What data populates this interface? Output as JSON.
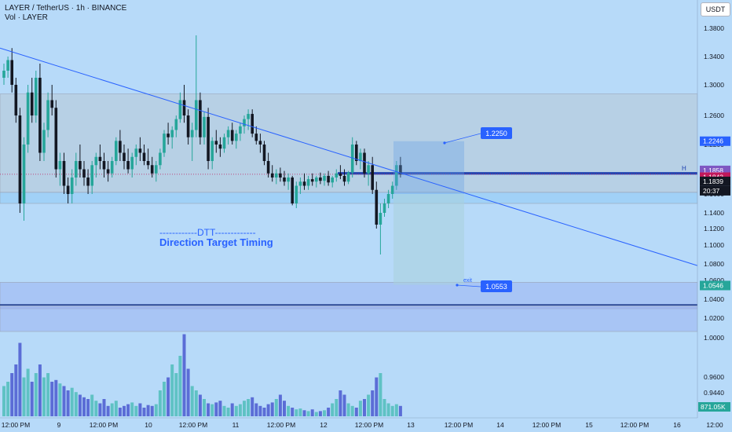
{
  "header": {
    "symbol": "LAYER / TetherUS · 1h · BINANCE",
    "volume": "Vol · LAYER"
  },
  "currency": "USDT",
  "colors": {
    "bg": "#b7daf9",
    "up": "#26a69a",
    "down": "#131722",
    "trend": "#2962ff",
    "vol_up": "#5fc2c4",
    "vol_down": "#5b6dd6"
  },
  "chart_data": {
    "type": "candlestick",
    "y_ticks": [
      "1.3800",
      "1.3400",
      "1.3000",
      "1.2600",
      "1.2200",
      "1.1600",
      "1.1400",
      "1.1200",
      "1.1000",
      "1.0800",
      "1.0600",
      "1.0400",
      "1.0200",
      "1.0000",
      "0.9600",
      "0.9440"
    ],
    "y_tick_values": [
      1.38,
      1.34,
      1.3,
      1.26,
      1.22,
      1.16,
      1.14,
      1.12,
      1.1,
      1.08,
      1.06,
      1.04,
      1.02,
      1.0,
      0.96,
      0.944
    ],
    "x_ticks": [
      "12:00 PM",
      "9",
      "12:00 PM",
      "10",
      "12:00 PM",
      "11",
      "12:00 PM",
      "12",
      "12:00 PM",
      "13",
      "12:00 PM",
      "14",
      "12:00 PM",
      "15",
      "12:00 PM",
      "16",
      "12:00"
    ],
    "price_labels": [
      {
        "text": "1.2246",
        "value": 1.2246,
        "color": "#2962ff"
      },
      {
        "text": "1.1858",
        "value": 1.1858,
        "color": "#7e57c2"
      },
      {
        "text": "1.1843",
        "value": 1.1843,
        "color": "#c2185b"
      },
      {
        "text": "1.1839",
        "value": 1.1839,
        "color": "#131722"
      },
      {
        "text": "1.0546",
        "value": 1.0546,
        "color": "#26a69a"
      }
    ],
    "countdown": "20:37",
    "volume_label": "871.05K",
    "annotations": {
      "target": "1.2250",
      "exit_price": "1.0553",
      "exit_label": "exit",
      "line_marker": "H",
      "dtt_title": "------------DTT-------------",
      "dtt_subtitle": "Direction Target Timing"
    },
    "zones": [
      {
        "from": 1.162,
        "to": 1.288
      },
      {
        "from": 1.15,
        "to": 1.162
      },
      {
        "from": 1.03,
        "to": 1.058
      }
    ],
    "horizontal_levels": [
      1.1843,
      1.1858,
      1.034
    ],
    "trendline": {
      "from": 1.352,
      "to": 1.078
    },
    "candles": [
      [
        1.31,
        1.33,
        1.3,
        1.32
      ],
      [
        1.32,
        1.34,
        1.31,
        1.335
      ],
      [
        1.335,
        1.352,
        1.29,
        1.3
      ],
      [
        1.3,
        1.31,
        1.25,
        1.26
      ],
      [
        1.26,
        1.27,
        1.14,
        1.15
      ],
      [
        1.15,
        1.23,
        1.13,
        1.22
      ],
      [
        1.22,
        1.3,
        1.21,
        1.29
      ],
      [
        1.29,
        1.31,
        1.25,
        1.26
      ],
      [
        1.26,
        1.32,
        1.25,
        1.31
      ],
      [
        1.31,
        1.33,
        1.2,
        1.21
      ],
      [
        1.21,
        1.25,
        1.2,
        1.24
      ],
      [
        1.24,
        1.29,
        1.23,
        1.28
      ],
      [
        1.28,
        1.3,
        1.26,
        1.27
      ],
      [
        1.27,
        1.28,
        1.18,
        1.19
      ],
      [
        1.19,
        1.21,
        1.17,
        1.2
      ],
      [
        1.2,
        1.21,
        1.16,
        1.17
      ],
      [
        1.17,
        1.18,
        1.15,
        1.16
      ],
      [
        1.16,
        1.19,
        1.15,
        1.18
      ],
      [
        1.18,
        1.21,
        1.17,
        1.2
      ],
      [
        1.2,
        1.22,
        1.18,
        1.19
      ],
      [
        1.19,
        1.2,
        1.17,
        1.18
      ],
      [
        1.18,
        1.19,
        1.16,
        1.17
      ],
      [
        1.17,
        1.2,
        1.16,
        1.195
      ],
      [
        1.195,
        1.21,
        1.18,
        1.205
      ],
      [
        1.205,
        1.22,
        1.19,
        1.2
      ],
      [
        1.2,
        1.21,
        1.18,
        1.19
      ],
      [
        1.19,
        1.2,
        1.175,
        1.185
      ],
      [
        1.185,
        1.205,
        1.18,
        1.2
      ],
      [
        1.2,
        1.23,
        1.195,
        1.225
      ],
      [
        1.225,
        1.24,
        1.2,
        1.21
      ],
      [
        1.21,
        1.22,
        1.19,
        1.2
      ],
      [
        1.2,
        1.215,
        1.185,
        1.19
      ],
      [
        1.19,
        1.21,
        1.18,
        1.205
      ],
      [
        1.205,
        1.22,
        1.195,
        1.215
      ],
      [
        1.215,
        1.23,
        1.2,
        1.21
      ],
      [
        1.21,
        1.22,
        1.195,
        1.2
      ],
      [
        1.2,
        1.215,
        1.19,
        1.195
      ],
      [
        1.195,
        1.205,
        1.18,
        1.185
      ],
      [
        1.185,
        1.2,
        1.175,
        1.195
      ],
      [
        1.195,
        1.215,
        1.19,
        1.21
      ],
      [
        1.21,
        1.24,
        1.205,
        1.235
      ],
      [
        1.235,
        1.25,
        1.22,
        1.23
      ],
      [
        1.23,
        1.245,
        1.215,
        1.24
      ],
      [
        1.24,
        1.26,
        1.23,
        1.255
      ],
      [
        1.255,
        1.29,
        1.25,
        1.28
      ],
      [
        1.28,
        1.3,
        1.25,
        1.26
      ],
      [
        1.26,
        1.268,
        1.22,
        1.23
      ],
      [
        1.23,
        1.25,
        1.2,
        1.24
      ],
      [
        1.24,
        1.37,
        1.23,
        1.28
      ],
      [
        1.28,
        1.29,
        1.22,
        1.23
      ],
      [
        1.23,
        1.265,
        1.22,
        1.258
      ],
      [
        1.258,
        1.27,
        1.19,
        1.2
      ],
      [
        1.2,
        1.23,
        1.19,
        1.225
      ],
      [
        1.225,
        1.24,
        1.21,
        1.22
      ],
      [
        1.22,
        1.23,
        1.205,
        1.215
      ],
      [
        1.215,
        1.235,
        1.21,
        1.23
      ],
      [
        1.23,
        1.245,
        1.22,
        1.24
      ],
      [
        1.24,
        1.25,
        1.22,
        1.225
      ],
      [
        1.225,
        1.24,
        1.215,
        1.235
      ],
      [
        1.235,
        1.25,
        1.225,
        1.245
      ],
      [
        1.245,
        1.26,
        1.235,
        1.255
      ],
      [
        1.255,
        1.268,
        1.24,
        1.262
      ],
      [
        1.262,
        1.268,
        1.23,
        1.235
      ],
      [
        1.235,
        1.245,
        1.22,
        1.225
      ],
      [
        1.225,
        1.235,
        1.21,
        1.22
      ],
      [
        1.22,
        1.225,
        1.195,
        1.2
      ],
      [
        1.2,
        1.21,
        1.18,
        1.185
      ],
      [
        1.185,
        1.195,
        1.175,
        1.18
      ],
      [
        1.18,
        1.19,
        1.172,
        1.185
      ],
      [
        1.185,
        1.192,
        1.175,
        1.18
      ],
      [
        1.18,
        1.188,
        1.17,
        1.175
      ],
      [
        1.175,
        1.185,
        1.165,
        1.18
      ],
      [
        1.18,
        1.182,
        1.148,
        1.15
      ],
      [
        1.15,
        1.175,
        1.145,
        1.17
      ],
      [
        1.17,
        1.18,
        1.16,
        1.175
      ],
      [
        1.175,
        1.185,
        1.165,
        1.17
      ],
      [
        1.17,
        1.182,
        1.165,
        1.178
      ],
      [
        1.178,
        1.185,
        1.17,
        1.175
      ],
      [
        1.175,
        1.182,
        1.168,
        1.18
      ],
      [
        1.18,
        1.186,
        1.172,
        1.176
      ],
      [
        1.176,
        1.185,
        1.17,
        1.182
      ],
      [
        1.182,
        1.188,
        1.17,
        1.174
      ],
      [
        1.174,
        1.182,
        1.168,
        1.18
      ],
      [
        1.18,
        1.19,
        1.175,
        1.185
      ],
      [
        1.185,
        1.195,
        1.178,
        1.182
      ],
      [
        1.182,
        1.19,
        1.17,
        1.175
      ],
      [
        1.175,
        1.188,
        1.172,
        1.186
      ],
      [
        1.186,
        1.23,
        1.18,
        1.22
      ],
      [
        1.22,
        1.225,
        1.195,
        1.2
      ],
      [
        1.2,
        1.215,
        1.19,
        1.21
      ],
      [
        1.21,
        1.215,
        1.18,
        1.185
      ],
      [
        1.185,
        1.2,
        1.17,
        1.195
      ],
      [
        1.195,
        1.205,
        1.16,
        1.165
      ],
      [
        1.165,
        1.175,
        1.12,
        1.125
      ],
      [
        1.125,
        1.15,
        1.09,
        1.14
      ],
      [
        1.14,
        1.155,
        1.135,
        1.15
      ],
      [
        1.15,
        1.165,
        1.145,
        1.16
      ],
      [
        1.16,
        1.175,
        1.155,
        1.17
      ],
      [
        1.17,
        1.2,
        1.165,
        1.195
      ],
      [
        1.195,
        1.205,
        1.18,
        1.184
      ]
    ],
    "volumes": [
      0.35,
      0.4,
      0.5,
      0.6,
      0.85,
      0.45,
      0.55,
      0.4,
      0.5,
      0.6,
      0.45,
      0.5,
      0.4,
      0.42,
      0.38,
      0.35,
      0.3,
      0.33,
      0.28,
      0.25,
      0.22,
      0.2,
      0.25,
      0.18,
      0.15,
      0.2,
      0.12,
      0.15,
      0.18,
      0.1,
      0.12,
      0.14,
      0.16,
      0.12,
      0.15,
      0.1,
      0.13,
      0.12,
      0.14,
      0.3,
      0.4,
      0.45,
      0.6,
      0.5,
      0.7,
      0.95,
      0.55,
      0.35,
      0.3,
      0.25,
      0.2,
      0.15,
      0.14,
      0.16,
      0.18,
      0.12,
      0.1,
      0.15,
      0.12,
      0.14,
      0.18,
      0.2,
      0.22,
      0.15,
      0.12,
      0.1,
      0.14,
      0.16,
      0.2,
      0.25,
      0.18,
      0.12,
      0.1,
      0.08,
      0.09,
      0.07,
      0.06,
      0.08,
      0.05,
      0.06,
      0.07,
      0.1,
      0.15,
      0.2,
      0.3,
      0.25,
      0.15,
      0.12,
      0.1,
      0.18,
      0.2,
      0.25,
      0.3,
      0.45,
      0.5,
      0.2,
      0.15,
      0.12,
      0.14,
      0.12
    ]
  }
}
